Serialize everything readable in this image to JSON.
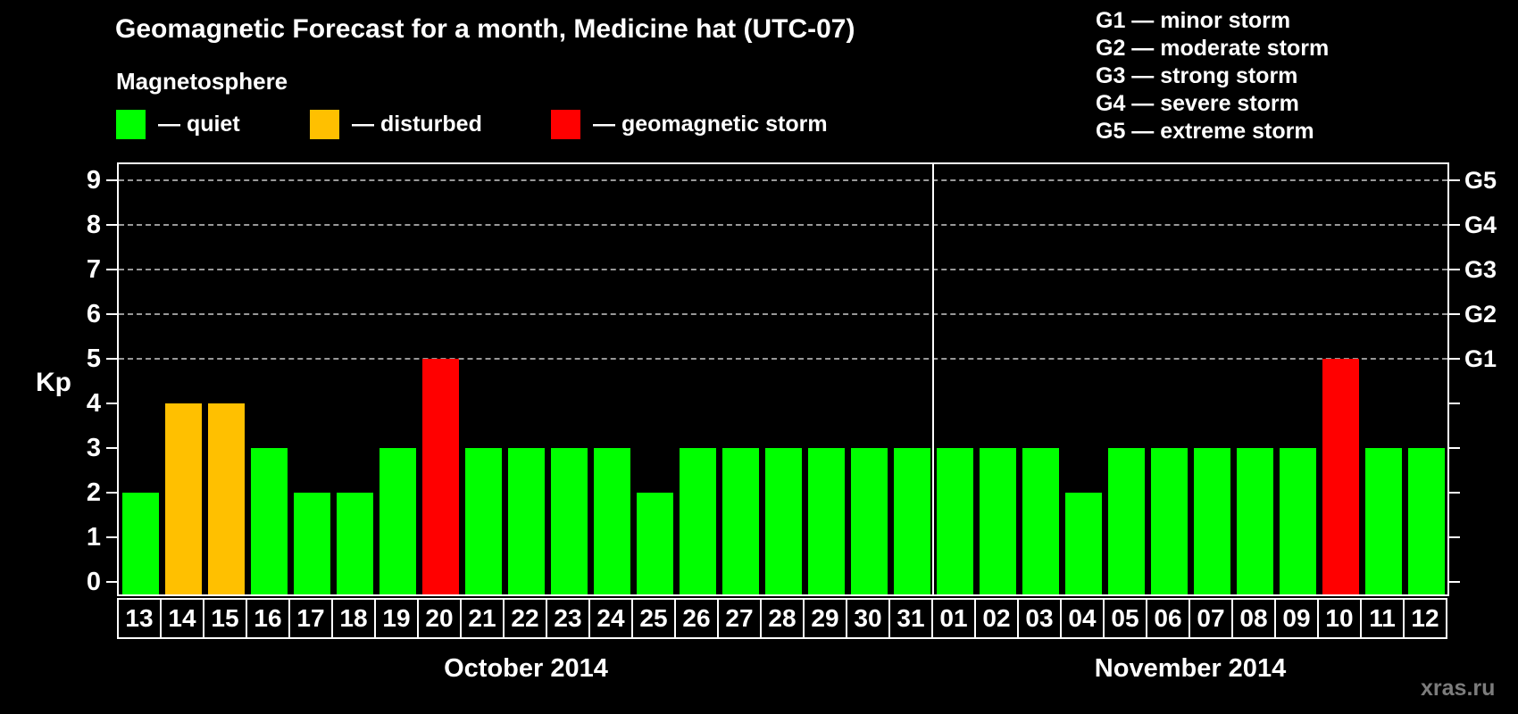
{
  "title": "Geomagnetic Forecast for a month, Medicine hat (UTC-07)",
  "legend": {
    "heading": "Magnetosphere",
    "items": [
      {
        "label": "— quiet",
        "color": "#00ff00"
      },
      {
        "label": "— disturbed",
        "color": "#ffc000"
      },
      {
        "label": "— geomagnetic storm",
        "color": "#ff0000"
      }
    ]
  },
  "g_legend": [
    "G1 — minor storm",
    "G2 — moderate storm",
    "G3 — strong storm",
    "G4 — severe storm",
    "G5 — extreme storm"
  ],
  "y_axis": {
    "label": "Kp",
    "ticks": [
      0,
      1,
      2,
      3,
      4,
      5,
      6,
      7,
      8,
      9
    ]
  },
  "right_axis_labels": [
    "G1",
    "G2",
    "G3",
    "G4",
    "G5"
  ],
  "watermark": "xras.ru",
  "chart_data": {
    "type": "bar",
    "title": "Geomagnetic Forecast for a month, Medicine hat (UTC-07)",
    "ylabel": "Kp",
    "ylim": [
      0,
      9
    ],
    "grid": "dashed horizontal lines at Kp 5-9 only",
    "gridlines_at": [
      5,
      6,
      7,
      8,
      9
    ],
    "legend_position": "top",
    "months": [
      {
        "label": "October 2014",
        "days": 19
      },
      {
        "label": "November 2014",
        "days": 12
      }
    ],
    "day_labels": [
      "13",
      "14",
      "15",
      "16",
      "17",
      "18",
      "19",
      "20",
      "21",
      "22",
      "23",
      "24",
      "25",
      "26",
      "27",
      "28",
      "29",
      "30",
      "31",
      "01",
      "02",
      "03",
      "04",
      "05",
      "06",
      "07",
      "08",
      "09",
      "10",
      "11",
      "12"
    ],
    "categories": [
      "Oct 13",
      "Oct 14",
      "Oct 15",
      "Oct 16",
      "Oct 17",
      "Oct 18",
      "Oct 19",
      "Oct 20",
      "Oct 21",
      "Oct 22",
      "Oct 23",
      "Oct 24",
      "Oct 25",
      "Oct 26",
      "Oct 27",
      "Oct 28",
      "Oct 29",
      "Oct 30",
      "Oct 31",
      "Nov 01",
      "Nov 02",
      "Nov 03",
      "Nov 04",
      "Nov 05",
      "Nov 06",
      "Nov 07",
      "Nov 08",
      "Nov 09",
      "Nov 10",
      "Nov 11",
      "Nov 12"
    ],
    "values": [
      2,
      4,
      4,
      3,
      2,
      2,
      3,
      5,
      3,
      3,
      3,
      3,
      2,
      3,
      3,
      3,
      3,
      3,
      3,
      3,
      3,
      3,
      2,
      3,
      3,
      3,
      3,
      3,
      5,
      3,
      3
    ],
    "statuses": [
      "quiet",
      "disturbed",
      "disturbed",
      "quiet",
      "quiet",
      "quiet",
      "quiet",
      "storm",
      "quiet",
      "quiet",
      "quiet",
      "quiet",
      "quiet",
      "quiet",
      "quiet",
      "quiet",
      "quiet",
      "quiet",
      "quiet",
      "quiet",
      "quiet",
      "quiet",
      "quiet",
      "quiet",
      "quiet",
      "quiet",
      "quiet",
      "quiet",
      "storm",
      "quiet",
      "quiet"
    ],
    "color_map": {
      "quiet": "#00ff00",
      "disturbed": "#ffc000",
      "storm": "#ff0000"
    },
    "right_scale": {
      "G1": 5,
      "G2": 6,
      "G3": 7,
      "G4": 8,
      "G5": 9
    }
  }
}
